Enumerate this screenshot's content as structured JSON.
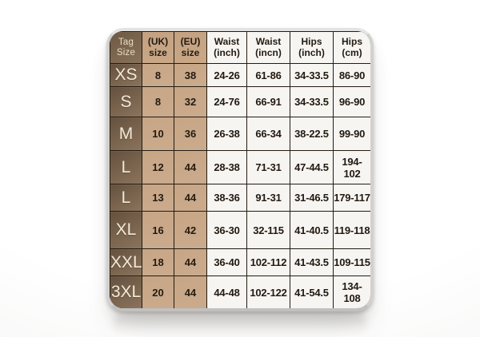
{
  "chart_data": {
    "type": "table",
    "title": "Clothing size chart card (Tag / UK / EU sizes with waist and hips ranges)",
    "columns": [
      "Tag Size",
      "(UK) size",
      "(EU) size",
      "Waist (inch)",
      "Waist (incn)",
      "Hips (inch)",
      "Hips (cm)"
    ],
    "rows": [
      [
        "XS",
        "8",
        "38",
        "24-26",
        "61-86",
        "34-33.5",
        "86-90"
      ],
      [
        "S",
        "8",
        "32",
        "24-76",
        "66-91",
        "34-33.5",
        "96-90"
      ],
      [
        "M",
        "10",
        "36",
        "26-38",
        "66-34",
        "38-22.5",
        "99-90"
      ],
      [
        "L",
        "12",
        "44",
        "28-38",
        "71-31",
        "47-44.5",
        "194-102"
      ],
      [
        "L",
        "13",
        "44",
        "38-36",
        "91-31",
        "31-46.5",
        "179-117"
      ],
      [
        "XL",
        "16",
        "42",
        "36-30",
        "32-115",
        "41-40.5",
        "119-118"
      ],
      [
        "XXL",
        "18",
        "44",
        "36-40",
        "102-112",
        "41-43.5",
        "109-115"
      ],
      [
        "3XL",
        "20",
        "44",
        "44-48",
        "102-122",
        "41-54.5",
        "134-108"
      ]
    ],
    "legend": "none",
    "grid": "on"
  },
  "table": {
    "header": [
      {
        "key": "tag-size",
        "line1": "Tag",
        "line2": "Size"
      },
      {
        "key": "uk-size",
        "line1": "(UK)",
        "line2": "size"
      },
      {
        "key": "eu-size",
        "line1": "(EU)",
        "line2": "size"
      },
      {
        "key": "waist-inch",
        "line1": "Waist",
        "line2": "(inch)"
      },
      {
        "key": "waist-incn",
        "line1": "Waist",
        "line2": "(incn)"
      },
      {
        "key": "hips-inch",
        "line1": "Hips",
        "line2": "(inch)"
      },
      {
        "key": "hips-cm",
        "line1": "Hips",
        "line2": "(cm)"
      }
    ]
  },
  "colors": {
    "tag_column_dark": "#64513f",
    "tag_column_light": "#8b745e",
    "size_columns_tan": "#c6a685",
    "data_cell_bg": "#f7f5f2",
    "grid_line": "#241b11",
    "tag_text": "#f3e9d8",
    "data_text": "#221910",
    "card_rim": "#d2d1d0"
  }
}
